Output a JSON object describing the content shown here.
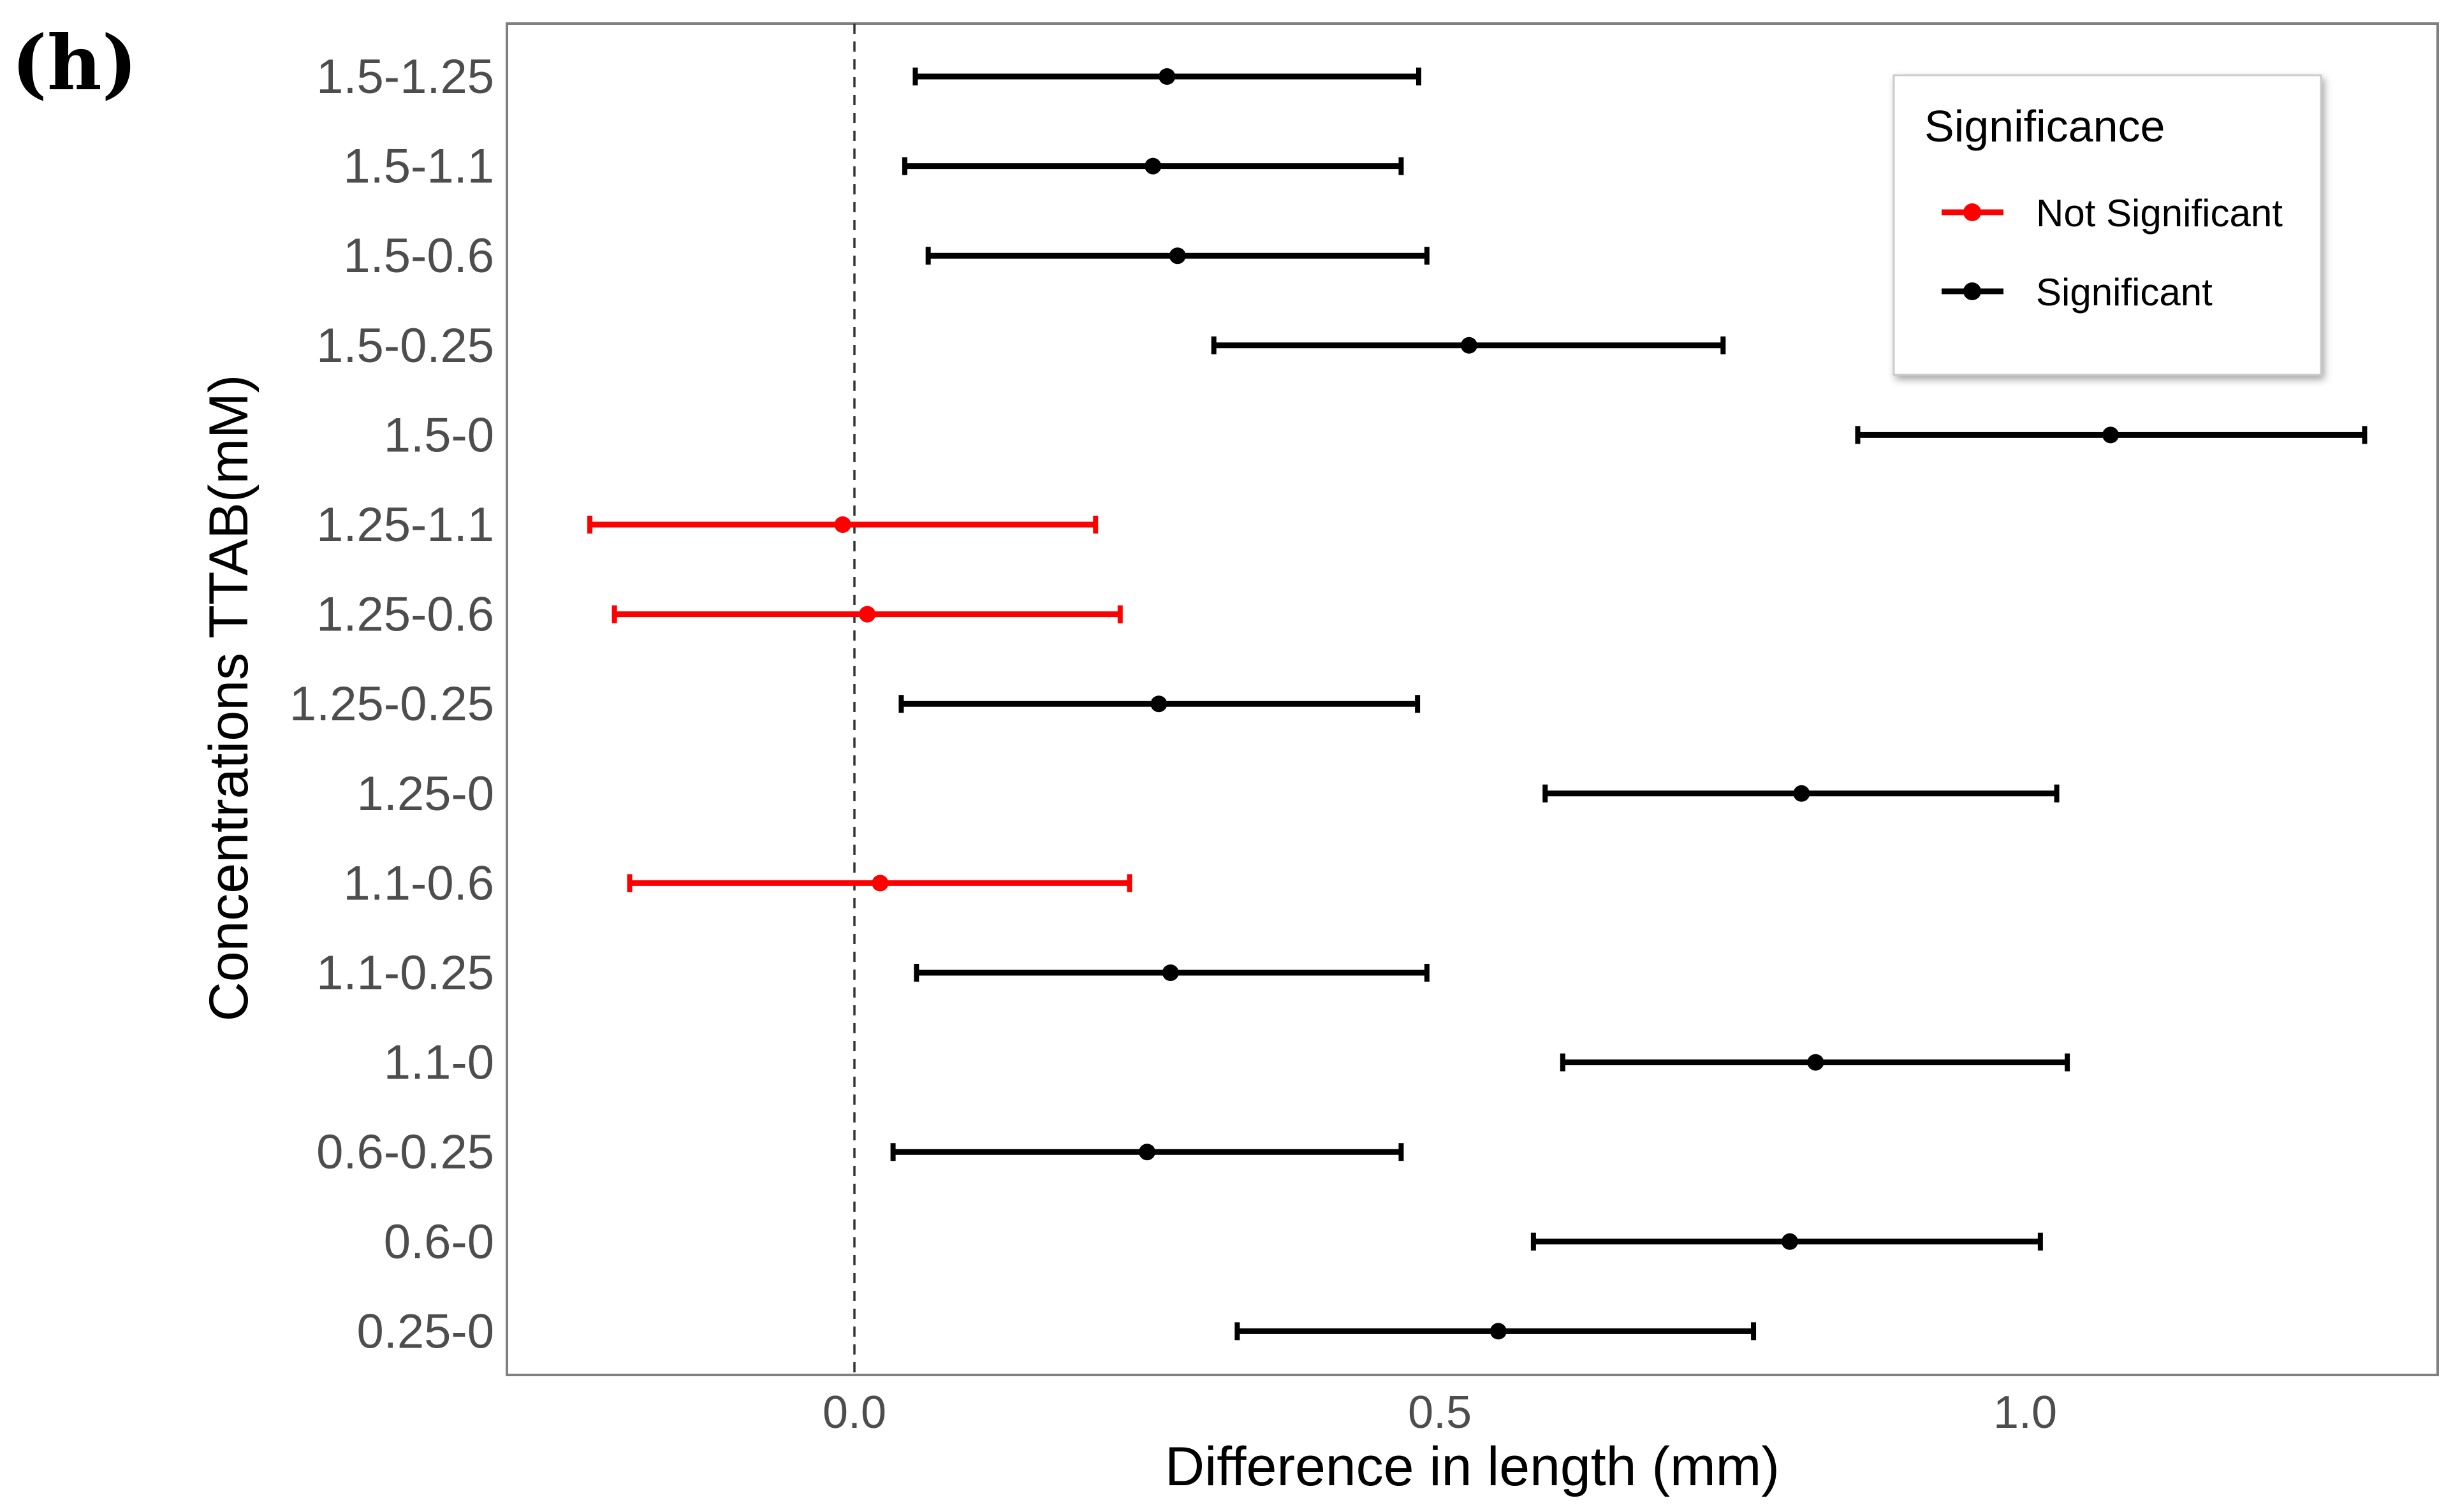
{
  "panel_label": "(h)",
  "chart_data": {
    "type": "errorbar",
    "title": "",
    "xlabel": "Difference in length (mm)",
    "ylabel": "Concentrations TTAB(mM)",
    "xlim": [
      -0.3,
      1.37
    ],
    "xticks": [
      0.0,
      0.5,
      1.0
    ],
    "xtick_labels": [
      "0.0",
      "0.5",
      "1.0"
    ],
    "reference_line": 0.0,
    "legend": {
      "title": "Significance",
      "position": "top-right",
      "entries": [
        {
          "label": "Not Significant",
          "color": "#ff0000"
        },
        {
          "label": "Significant",
          "color": "#000000"
        }
      ]
    },
    "categories": [
      "1.5-1.25",
      "1.5-1.1",
      "1.5-0.6",
      "1.5-0.25",
      "1.5-0",
      "1.25-1.1",
      "1.25-0.6",
      "1.25-0.25",
      "1.25-0",
      "1.1-0.6",
      "1.1-0.25",
      "1.1-0",
      "0.6-0.25",
      "0.6-0",
      "0.25-0"
    ],
    "estimates": [
      0.267,
      0.255,
      0.276,
      0.525,
      1.073,
      -0.01,
      0.011,
      0.26,
      0.809,
      0.022,
      0.27,
      0.821,
      0.25,
      0.799,
      0.55
    ],
    "lower": [
      0.052,
      0.043,
      0.063,
      0.307,
      0.857,
      -0.226,
      -0.205,
      0.04,
      0.59,
      -0.192,
      0.053,
      0.605,
      0.033,
      0.58,
      0.327
    ],
    "upper": [
      0.482,
      0.467,
      0.489,
      0.742,
      1.29,
      0.206,
      0.227,
      0.481,
      1.027,
      0.235,
      0.489,
      1.036,
      0.467,
      1.013,
      0.768
    ],
    "significance": [
      "Significant",
      "Significant",
      "Significant",
      "Significant",
      "Significant",
      "Not Significant",
      "Not Significant",
      "Significant",
      "Significant",
      "Not Significant",
      "Significant",
      "Significant",
      "Significant",
      "Significant",
      "Significant"
    ]
  }
}
